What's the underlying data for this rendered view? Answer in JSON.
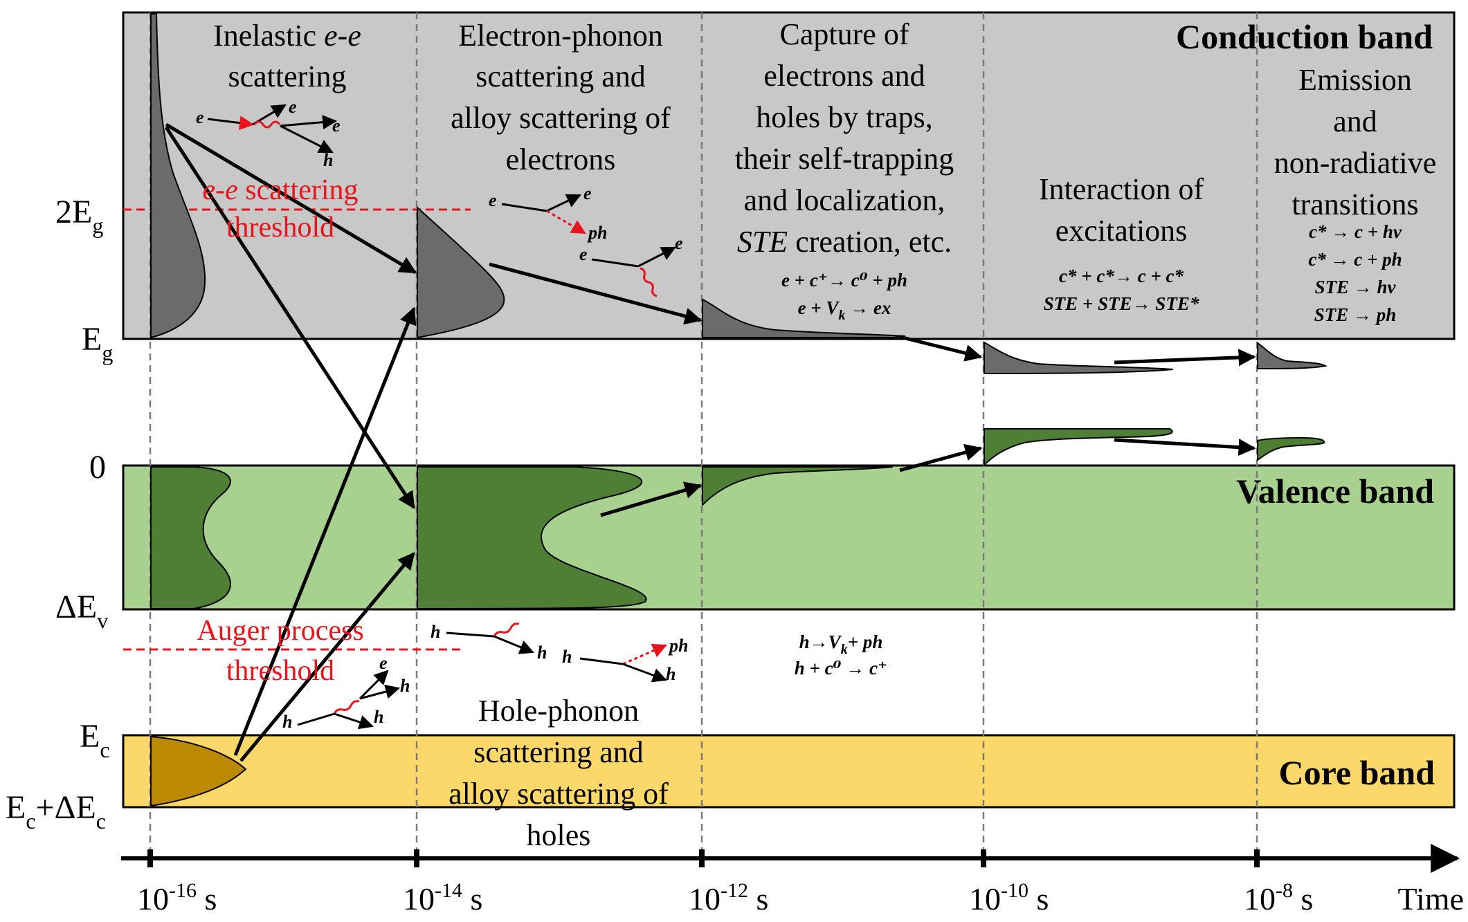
{
  "bands": {
    "conduction": "Conduction band",
    "valence": "Valence band",
    "core": "Core band"
  },
  "y_axis": {
    "two_eg": {
      "main": "2E",
      "sub": "g"
    },
    "eg": {
      "main": "E",
      "sub": "g"
    },
    "zero": "0",
    "dev": {
      "main": "ΔE",
      "sub": "v"
    },
    "ec": {
      "main": "E",
      "sub": "c"
    },
    "ec_dec": {
      "main1": "E",
      "sub1": "c",
      "mid": "+ΔE",
      "sub2": "c"
    }
  },
  "time_axis": {
    "label": "Time",
    "ticks": [
      {
        "base": "10",
        "exp": "-16",
        "unit": " s"
      },
      {
        "base": "10",
        "exp": "-14",
        "unit": " s"
      },
      {
        "base": "10",
        "exp": "-12",
        "unit": " s"
      },
      {
        "base": "10",
        "exp": "-10",
        "unit": " s"
      },
      {
        "base": "10",
        "exp": "-8",
        "unit": " s"
      }
    ]
  },
  "stages": {
    "s1": {
      "l1a": "Inelastic ",
      "l1b": "e-e",
      "l2": "scattering"
    },
    "s2": [
      "Electron-phonon",
      "scattering and",
      "alloy scattering of",
      "electrons"
    ],
    "s3": {
      "lines": [
        "Capture of",
        "electrons and",
        "holes by traps,",
        "their self-trapping",
        "and localization,"
      ],
      "l6a": "STE",
      "l6b": " creation, etc."
    },
    "s4": [
      "Interaction of",
      "excitations"
    ],
    "s5": [
      "Emission",
      "and",
      "non-radiative",
      "transitions"
    ],
    "hole": [
      "Hole-phonon",
      "scattering and",
      "alloy scattering of",
      "holes"
    ]
  },
  "thresholds": {
    "ee": {
      "l1a": "e-e",
      "l1b": " scattering",
      "l2": "threshold"
    },
    "auger": [
      "Auger process",
      "threshold"
    ]
  },
  "equations": {
    "s3": [
      "e + c⁺→ c⁰ + ph",
      "e + V",
      "k",
      " → ex"
    ],
    "s4": [
      "c* + c*→ c + c*",
      "STE + STE→ STE*"
    ],
    "s5": [
      "c* → c + hv",
      "c* → c + ph",
      "STE → hv",
      "STE → ph"
    ],
    "holes": [
      "h→V",
      "k",
      "+ ph",
      "h + c⁰ → c⁺"
    ]
  },
  "particles": {
    "e": "e",
    "h": "h",
    "ph": "ph"
  },
  "colors": {
    "conduction_fill": "#c8c8c8",
    "valence_fill": "#a8d190",
    "core_fill": "#fcd769",
    "dist_gray": "#6b6b6b",
    "dist_green": "#4f7f35",
    "dist_core": "#bb8a00",
    "threshold_red": "#e8141c"
  }
}
